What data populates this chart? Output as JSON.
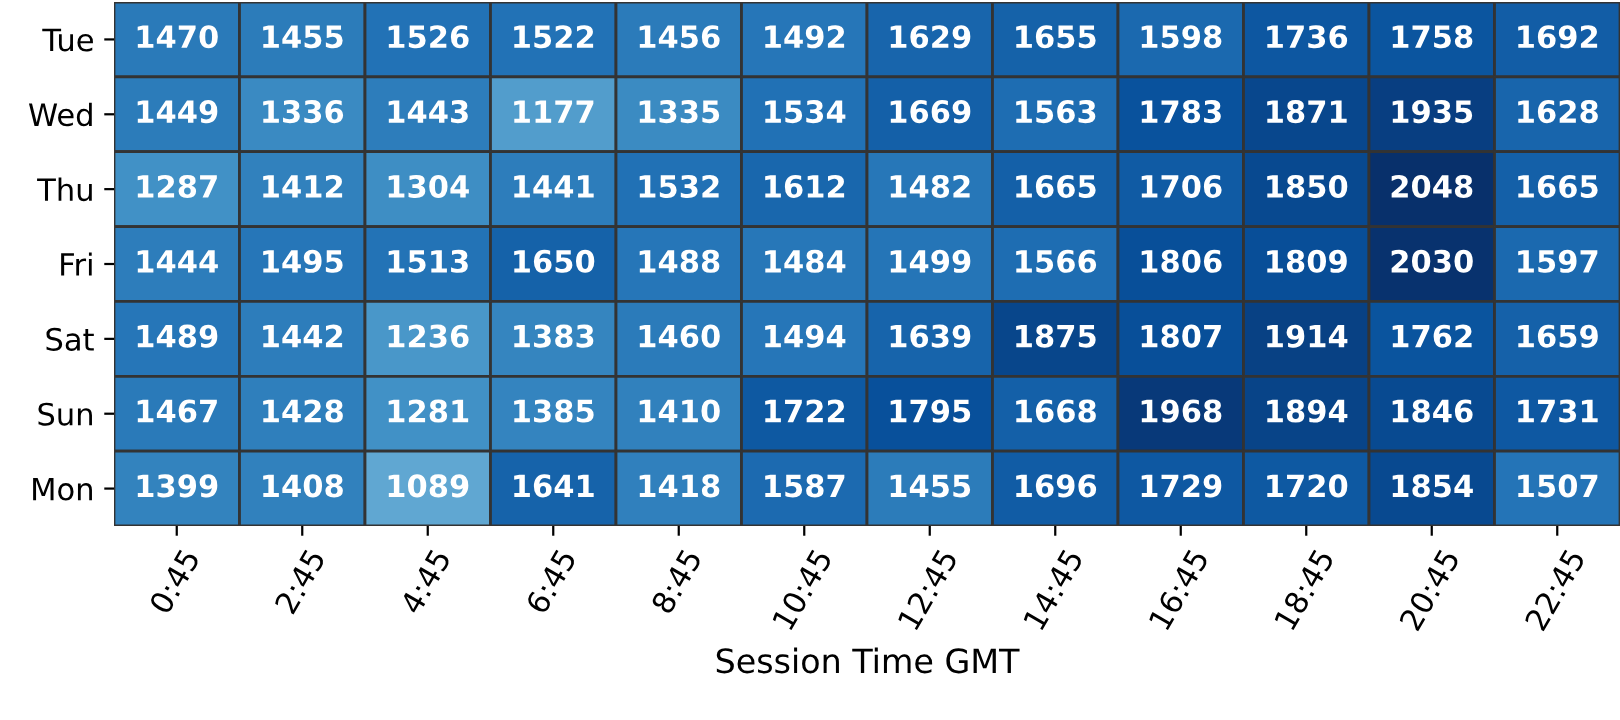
{
  "chart_data": {
    "type": "heatmap",
    "xlabel": "Session Time GMT",
    "categories": [
      "0:45",
      "2:45",
      "4:45",
      "6:45",
      "8:45",
      "10:45",
      "12:45",
      "14:45",
      "16:45",
      "18:45",
      "20:45",
      "22:45"
    ],
    "y_categories": [
      "Tue",
      "Wed",
      "Thu",
      "Fri",
      "Sat",
      "Sun",
      "Mon"
    ],
    "cells": [
      [
        1470,
        1455,
        1526,
        1522,
        1456,
        1492,
        1629,
        1655,
        1598,
        1736,
        1758,
        1692
      ],
      [
        1449,
        1336,
        1443,
        1177,
        1335,
        1534,
        1669,
        1563,
        1783,
        1871,
        1935,
        1628
      ],
      [
        1287,
        1412,
        1304,
        1441,
        1532,
        1612,
        1482,
        1665,
        1706,
        1850,
        2048,
        1665
      ],
      [
        1444,
        1495,
        1513,
        1650,
        1488,
        1484,
        1499,
        1566,
        1806,
        1809,
        2030,
        1597
      ],
      [
        1489,
        1442,
        1236,
        1383,
        1460,
        1494,
        1639,
        1875,
        1807,
        1914,
        1762,
        1659
      ],
      [
        1467,
        1428,
        1281,
        1385,
        1410,
        1722,
        1795,
        1668,
        1968,
        1894,
        1846,
        1731
      ],
      [
        1399,
        1408,
        1089,
        1641,
        1418,
        1587,
        1455,
        1696,
        1729,
        1720,
        1854,
        1507
      ]
    ],
    "data_labels": true
  }
}
